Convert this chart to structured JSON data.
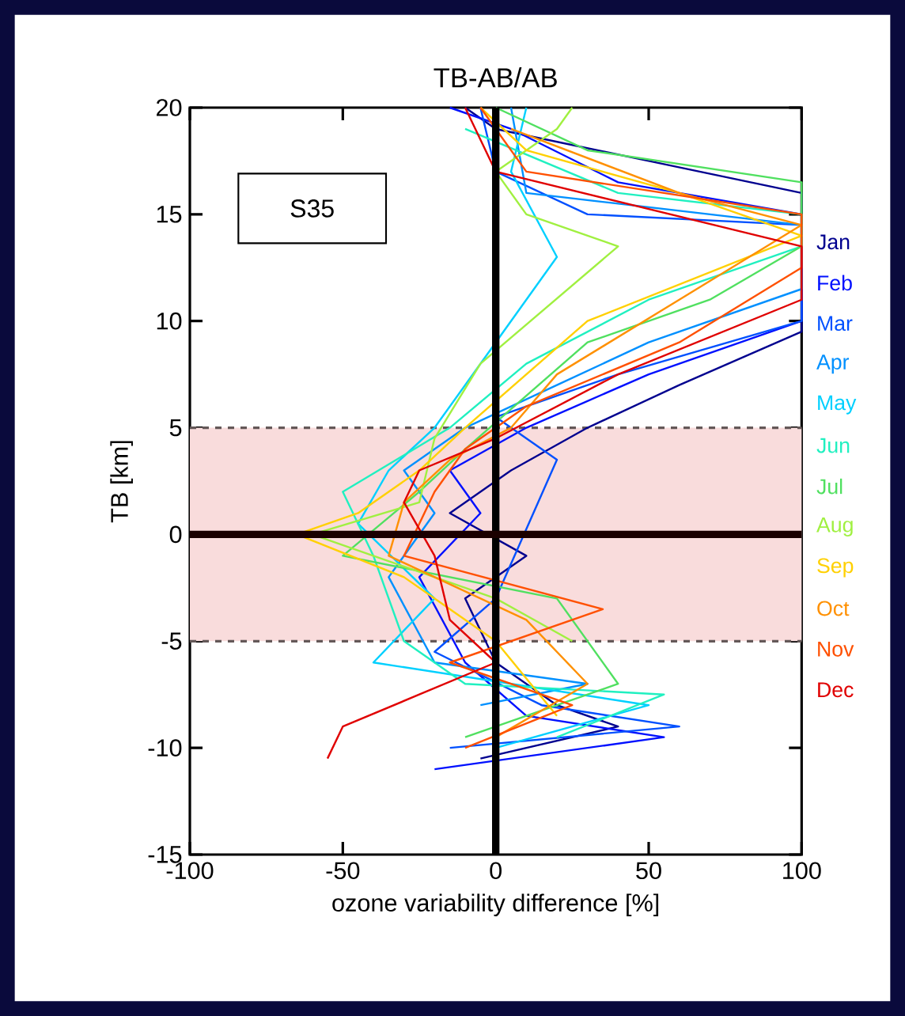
{
  "chart_data": {
    "type": "line",
    "title": "TB-AB/AB",
    "xlabel": "ozone variability difference [%]",
    "ylabel": "TB [km]",
    "xlim": [
      -100,
      100
    ],
    "xticks": [
      -100,
      -50,
      0,
      50,
      100
    ],
    "ylim": [
      -15,
      20
    ],
    "yticks": [
      -15,
      -10,
      -5,
      0,
      5,
      10,
      15,
      20
    ],
    "annotations": [
      "S35"
    ],
    "bands": [
      {
        "axis": "y",
        "from": -5,
        "to": 5,
        "color": "#f9dcdc"
      }
    ],
    "ref_lines": [
      {
        "axis": "x",
        "value": 0,
        "color": "#000000"
      },
      {
        "axis": "y",
        "value": 0,
        "color": "#1a0000"
      }
    ],
    "series": [
      {
        "name": "Jan",
        "color": "#00008f",
        "x": [
          -5,
          40,
          20,
          0,
          -10,
          10,
          -15,
          5,
          30,
          60,
          100,
          100,
          50,
          0,
          -10
        ],
        "values": [
          -10.5,
          -9,
          -8,
          -6,
          -3,
          -1,
          1,
          3,
          5,
          7,
          9.5,
          16,
          17.5,
          19,
          20
        ]
      },
      {
        "name": "Feb",
        "color": "#0010ff",
        "x": [
          -20,
          55,
          10,
          -10,
          -25,
          -5,
          -15,
          10,
          50,
          100,
          100,
          40,
          5,
          -15
        ],
        "values": [
          -11,
          -9.5,
          -8.5,
          -6,
          -2,
          1,
          3,
          5,
          7.5,
          10,
          15,
          16.5,
          19,
          20
        ]
      },
      {
        "name": "Mar",
        "color": "#0050ff",
        "x": [
          -15,
          60,
          15,
          -20,
          0,
          20,
          0,
          40,
          100,
          100,
          30,
          0,
          -5
        ],
        "values": [
          -10,
          -9,
          -8,
          -5.5,
          -3,
          3.5,
          5.5,
          7.5,
          10,
          14.5,
          15,
          17,
          20
        ]
      },
      {
        "name": "Apr",
        "color": "#0090ff",
        "x": [
          -5,
          30,
          -20,
          -35,
          -20,
          -30,
          -10,
          20,
          50,
          100,
          100,
          10,
          5
        ],
        "values": [
          -8,
          -7,
          -6,
          -2,
          1,
          3,
          5,
          7,
          9,
          11.5,
          14.5,
          16,
          20
        ]
      },
      {
        "name": "May",
        "color": "#00d0ff",
        "x": [
          0,
          50,
          -40,
          -20,
          -45,
          -35,
          -20,
          0,
          20,
          5,
          10
        ],
        "values": [
          -10,
          -8,
          -6,
          -3,
          0.5,
          3,
          5,
          9,
          13,
          17,
          20
        ]
      },
      {
        "name": "Jun",
        "color": "#20f0c0",
        "x": [
          20,
          55,
          -10,
          -30,
          -40,
          -50,
          -15,
          10,
          50,
          100,
          100,
          40,
          -10
        ],
        "values": [
          -9.5,
          -7.5,
          -7,
          -5,
          -1,
          2,
          5,
          8,
          11,
          13.5,
          15,
          16,
          19
        ]
      },
      {
        "name": "Jul",
        "color": "#50e060",
        "x": [
          -10,
          40,
          20,
          -50,
          -25,
          -10,
          30,
          70,
          100,
          100,
          30,
          0
        ],
        "values": [
          -9.5,
          -7,
          -3,
          -1,
          2,
          4,
          9,
          11,
          13.5,
          16.5,
          18,
          20
        ]
      },
      {
        "name": "Aug",
        "color": "#a0f040",
        "x": [
          25,
          0,
          -30,
          -60,
          -25,
          -20,
          -5,
          40,
          10,
          0,
          20,
          25
        ],
        "values": [
          -5,
          -3,
          -1.5,
          0,
          1.5,
          4.5,
          8,
          13.5,
          15,
          17,
          19,
          20
        ]
      },
      {
        "name": "Sep",
        "color": "#ffd000",
        "x": [
          20,
          0,
          -30,
          -65,
          -45,
          -25,
          -10,
          30,
          100,
          60,
          10,
          -5
        ],
        "values": [
          -8.5,
          -5,
          -2,
          0,
          1,
          3,
          5,
          10,
          14,
          16,
          18,
          20
        ]
      },
      {
        "name": "Oct",
        "color": "#ff9000",
        "x": [
          0,
          30,
          10,
          -35,
          -30,
          -15,
          5,
          20,
          60,
          100,
          60,
          5
        ],
        "values": [
          -9.5,
          -7,
          -4,
          -1,
          1.5,
          3.5,
          5,
          7.5,
          11,
          14.5,
          16,
          19
        ]
      },
      {
        "name": "Nov",
        "color": "#ff5000",
        "x": [
          -10,
          25,
          -15,
          35,
          -30,
          -20,
          -10,
          10,
          60,
          100,
          100,
          10,
          -5
        ],
        "values": [
          -10,
          -8,
          -6,
          -3.5,
          -1,
          2,
          4,
          6,
          9,
          12.5,
          15,
          17,
          20
        ]
      },
      {
        "name": "Dec",
        "color": "#e00000",
        "x": [
          -55,
          -50,
          -25,
          0,
          -15,
          -20,
          -30,
          -25,
          0,
          40,
          100,
          100,
          0,
          -10
        ],
        "values": [
          -10.5,
          -9,
          -7.5,
          -6,
          -4,
          -1,
          1.5,
          3,
          4.5,
          7.5,
          11,
          13.5,
          17,
          20
        ]
      }
    ]
  }
}
